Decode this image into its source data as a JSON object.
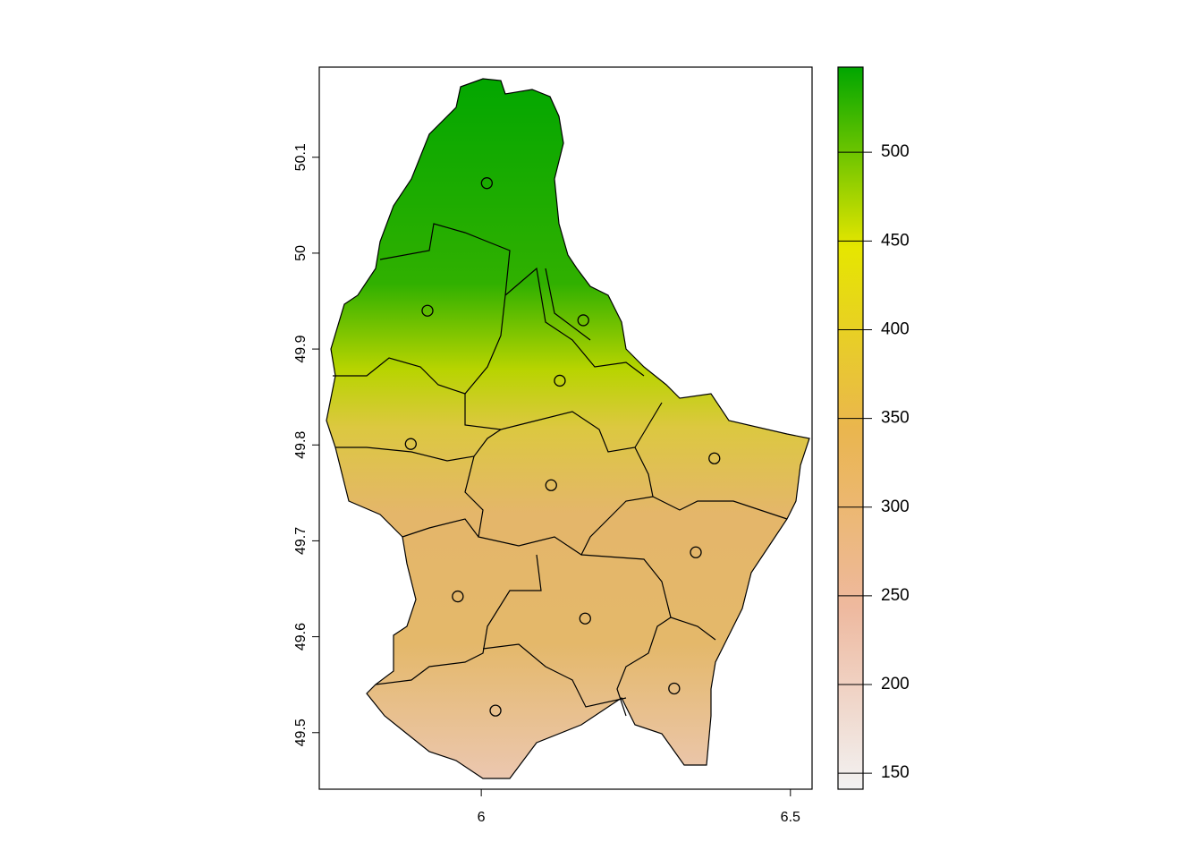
{
  "chart_data": {
    "type": "map",
    "xlim": [
      5.738,
      6.535
    ],
    "ylim": [
      49.441,
      50.194
    ],
    "xticks": [
      6,
      6.5
    ],
    "yticks": [
      49.5,
      49.6,
      49.7,
      49.8,
      49.9,
      50,
      50.1
    ],
    "points": {
      "x": [
        6.009,
        5.913,
        6.165,
        6.127,
        5.886,
        6.377,
        6.113,
        6.347,
        5.962,
        6.168,
        6.312,
        6.023
      ],
      "y": [
        50.073,
        49.94,
        49.93,
        49.867,
        49.801,
        49.786,
        49.758,
        49.688,
        49.642,
        49.619,
        49.546,
        49.523
      ]
    },
    "legend": {
      "zlim": [
        141,
        548
      ],
      "ticks": [
        150,
        200,
        250,
        300,
        350,
        400,
        450,
        500
      ],
      "colors": [
        "#f2f2f2",
        "#eeb99f",
        "#eab64e",
        "#e6e600",
        "#00a600"
      ]
    }
  }
}
